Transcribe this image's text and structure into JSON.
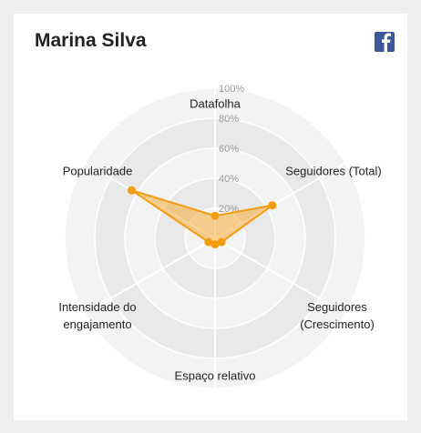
{
  "chart_data": {
    "type": "radar",
    "title": "Marina Silva",
    "categories": [
      "Datafolha",
      "Seguidores (Total)",
      "Seguidores (Crescimento)",
      "Espaço relativo",
      "Intensidade do engajamento",
      "Popularidade"
    ],
    "values": [
      15,
      44,
      5,
      4,
      5,
      64
    ],
    "color": "#f39c12",
    "ylim": [
      0,
      100
    ],
    "yticks": [
      {
        "value": 20,
        "label": "20%"
      },
      {
        "value": 40,
        "label": "40%"
      },
      {
        "value": 60,
        "label": "60%"
      },
      {
        "value": 80,
        "label": "80%"
      },
      {
        "value": 100,
        "label": "100%"
      }
    ]
  }
}
